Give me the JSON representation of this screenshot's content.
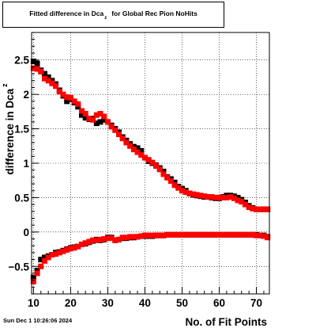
{
  "title": {
    "main": "Fitted difference in Dca",
    "sub": "z",
    "rest": "for Global Rec Pion NoHits"
  },
  "timestamp": "Sun Dec  1 10:26:06 2024",
  "chart_data": {
    "type": "scatter",
    "title": "Fitted difference in Dca z for Global Rec Pion NoHits",
    "xlabel": "No. of Fit Points",
    "ylabel": "difference in Dca",
    "ylabel_sub": "z",
    "xlim": [
      9.5,
      73.5
    ],
    "ylim": [
      -0.9,
      2.9
    ],
    "xticks": [
      10,
      20,
      30,
      40,
      50,
      60,
      70
    ],
    "yticks": [
      -0.5,
      0,
      0.5,
      1,
      1.5,
      2,
      2.5
    ],
    "ytick_labels": [
      "−0.5",
      "0",
      "0.5",
      "1",
      "1.5",
      "2",
      "2.5"
    ],
    "grid": true,
    "series": [
      {
        "color": "#000000",
        "marker": "square",
        "x": [
          10,
          11,
          12,
          13,
          14,
          15,
          16,
          17,
          18,
          19,
          20,
          21,
          22,
          23,
          24,
          25,
          26,
          27,
          28,
          29,
          30,
          31,
          32,
          33,
          34,
          35,
          36,
          37,
          38,
          39,
          40,
          41,
          42,
          43,
          44,
          45,
          46,
          47,
          48,
          49,
          50,
          51,
          52,
          53,
          54,
          55,
          56,
          57,
          58,
          59,
          60,
          61,
          62,
          63,
          64,
          65,
          66,
          67,
          68,
          69,
          70,
          71,
          72,
          73
        ],
        "y": [
          2.48,
          2.45,
          2.35,
          2.3,
          2.25,
          2.2,
          2.15,
          2.06,
          1.98,
          1.9,
          1.93,
          1.88,
          1.82,
          1.7,
          1.66,
          1.64,
          1.65,
          1.58,
          1.6,
          1.63,
          1.6,
          1.55,
          1.5,
          1.45,
          1.38,
          1.33,
          1.28,
          1.24,
          1.22,
          1.18,
          1.08,
          1.03,
          1.0,
          0.97,
          0.93,
          0.88,
          0.8,
          0.77,
          0.72,
          0.66,
          0.63,
          0.6,
          0.56,
          0.54,
          0.53,
          0.52,
          0.51,
          0.51,
          0.5,
          0.49,
          0.49,
          0.51,
          0.53,
          0.53,
          0.52,
          0.5,
          0.47,
          0.43,
          0.38,
          0.35,
          0.33,
          0.33,
          0.33,
          0.33
        ]
      },
      {
        "color": "#ff0000",
        "marker": "square",
        "x": [
          10,
          11,
          12,
          13,
          14,
          15,
          16,
          17,
          18,
          19,
          20,
          21,
          22,
          23,
          24,
          25,
          26,
          27,
          28,
          29,
          30,
          31,
          32,
          33,
          34,
          35,
          36,
          37,
          38,
          39,
          40,
          41,
          42,
          43,
          44,
          45,
          46,
          47,
          48,
          49,
          50,
          51,
          52,
          53,
          54,
          55,
          56,
          57,
          58,
          59,
          60,
          61,
          62,
          63,
          64,
          65,
          66,
          67,
          68,
          69,
          70,
          71,
          72,
          73
        ],
        "y": [
          2.38,
          2.37,
          2.33,
          2.23,
          2.2,
          2.16,
          2.12,
          2.04,
          2.0,
          1.96,
          1.95,
          1.9,
          1.86,
          1.76,
          1.72,
          1.65,
          1.63,
          1.7,
          1.72,
          1.68,
          1.6,
          1.53,
          1.48,
          1.42,
          1.36,
          1.3,
          1.25,
          1.2,
          1.16,
          1.12,
          1.08,
          1.05,
          1.01,
          0.96,
          0.91,
          0.84,
          0.79,
          0.74,
          0.68,
          0.64,
          0.6,
          0.58,
          0.56,
          0.55,
          0.54,
          0.53,
          0.52,
          0.51,
          0.51,
          0.5,
          0.5,
          0.5,
          0.5,
          0.51,
          0.49,
          0.46,
          0.44,
          0.4,
          0.36,
          0.34,
          0.33,
          0.33,
          0.33,
          0.33
        ]
      },
      {
        "color": "#000000",
        "marker": "square",
        "x": [
          10,
          11,
          12,
          13,
          14,
          15,
          16,
          17,
          18,
          19,
          20,
          21,
          22,
          23,
          24,
          25,
          26,
          27,
          28,
          29,
          30,
          31,
          32,
          33,
          34,
          35,
          36,
          37,
          38,
          39,
          40,
          41,
          42,
          43,
          44,
          45,
          46,
          47,
          48,
          49,
          50,
          51,
          52,
          53,
          54,
          55,
          56,
          57,
          58,
          59,
          60,
          61,
          62,
          63,
          64,
          65,
          66,
          67,
          68,
          69,
          70,
          71,
          72,
          73
        ],
        "y": [
          -0.66,
          -0.56,
          -0.4,
          -0.37,
          -0.35,
          -0.33,
          -0.3,
          -0.29,
          -0.27,
          -0.25,
          -0.23,
          -0.22,
          -0.21,
          -0.18,
          -0.17,
          -0.15,
          -0.13,
          -0.11,
          -0.12,
          -0.11,
          -0.08,
          -0.08,
          -0.12,
          -0.11,
          -0.09,
          -0.09,
          -0.08,
          -0.08,
          -0.07,
          -0.06,
          -0.06,
          -0.06,
          -0.06,
          -0.05,
          -0.05,
          -0.05,
          -0.04,
          -0.04,
          -0.04,
          -0.04,
          -0.04,
          -0.04,
          -0.04,
          -0.04,
          -0.04,
          -0.04,
          -0.04,
          -0.04,
          -0.04,
          -0.04,
          -0.04,
          -0.04,
          -0.04,
          -0.04,
          -0.04,
          -0.04,
          -0.04,
          -0.04,
          -0.04,
          -0.04,
          -0.04,
          -0.05,
          -0.05,
          -0.07
        ]
      },
      {
        "color": "#ff0000",
        "marker": "square",
        "x": [
          10,
          11,
          12,
          13,
          14,
          15,
          16,
          17,
          18,
          19,
          20,
          21,
          22,
          23,
          24,
          25,
          26,
          27,
          28,
          29,
          30,
          31,
          32,
          33,
          34,
          35,
          36,
          37,
          38,
          39,
          40,
          41,
          42,
          43,
          44,
          45,
          46,
          47,
          48,
          49,
          50,
          51,
          52,
          53,
          54,
          55,
          56,
          57,
          58,
          59,
          60,
          61,
          62,
          63,
          64,
          65,
          66,
          67,
          68,
          69,
          70,
          71,
          72,
          73
        ],
        "y": [
          -0.72,
          -0.6,
          -0.5,
          -0.42,
          -0.37,
          -0.33,
          -0.32,
          -0.3,
          -0.28,
          -0.26,
          -0.24,
          -0.23,
          -0.21,
          -0.18,
          -0.16,
          -0.14,
          -0.12,
          -0.12,
          -0.11,
          -0.1,
          -0.09,
          -0.09,
          -0.12,
          -0.11,
          -0.08,
          -0.08,
          -0.07,
          -0.07,
          -0.07,
          -0.06,
          -0.05,
          -0.05,
          -0.05,
          -0.05,
          -0.05,
          -0.05,
          -0.04,
          -0.04,
          -0.04,
          -0.04,
          -0.04,
          -0.04,
          -0.04,
          -0.04,
          -0.04,
          -0.04,
          -0.04,
          -0.04,
          -0.04,
          -0.04,
          -0.04,
          -0.04,
          -0.04,
          -0.04,
          -0.04,
          -0.04,
          -0.04,
          -0.04,
          -0.04,
          -0.04,
          -0.05,
          -0.05,
          -0.06,
          -0.08
        ]
      }
    ]
  }
}
